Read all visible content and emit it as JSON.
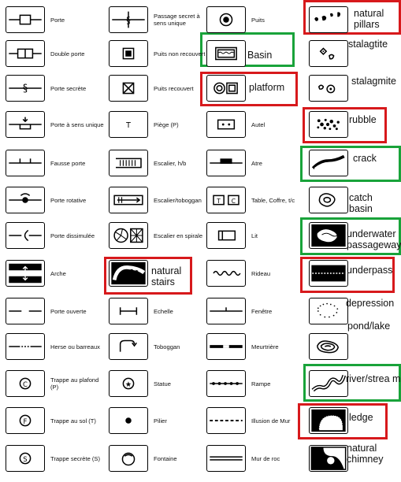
{
  "col1": [
    "Porte",
    "Double porte",
    "Porte secrète",
    "Porte à sens unique",
    "Fausse porte",
    "Porte rotative",
    "Porte dissimulée",
    "Arche",
    "Porte ouverte",
    "Herse ou barreaux",
    "Trappe au plafond (P)",
    "Trappe au sol (T)",
    "Trappe secrète (S)"
  ],
  "col1_icons": [
    "door-icon",
    "double-door-icon",
    "secret-door-icon",
    "one-way-door-icon",
    "false-door-icon",
    "revolving-door-icon",
    "concealed-door-icon",
    "arch-icon",
    "open-door-icon",
    "portcullis-icon",
    "ceiling-trapdoor-icon",
    "floor-trapdoor-icon",
    "secret-trapdoor-icon"
  ],
  "col2": [
    "Passage secret à sens unique",
    "Puits non recouvert",
    "Puits recouvert",
    "Piège (P)",
    "Escalier, h/b",
    "Escalier/toboggan",
    "Escalier en spirale",
    "",
    "Echelle",
    "Toboggan",
    "Statue",
    "Pilier",
    "Fontaine"
  ],
  "col2_icons": [
    "one-way-secret-passage-icon",
    "uncovered-pit-icon",
    "covered-pit-icon",
    "trap-icon",
    "stairs-icon",
    "stair-slide-icon",
    "spiral-stairs-icon",
    "natural-stairs-icon",
    "ladder-icon",
    "slide-icon",
    "statue-icon",
    "pillar-icon",
    "fountain-icon"
  ],
  "col3": [
    "Puits",
    "",
    "",
    "Autel",
    "Atre",
    "Table, Coffre, t/c",
    "Lit",
    "Rideau",
    "Fenêtre",
    "Meurtrière",
    "Rampe",
    "Illusion de Mur",
    "Mur de roc"
  ],
  "col3_icons": [
    "well-icon",
    "basin-icon",
    "platform-icon",
    "altar-icon",
    "hearth-icon",
    "table-chest-icon",
    "bed-icon",
    "curtain-icon",
    "window-icon",
    "arrow-slit-icon",
    "ramp-icon",
    "illusion-wall-icon",
    "rock-wall-icon"
  ],
  "col4_icons": [
    "natural-pillars-icon",
    "stalagtite-icon",
    "stalagmite-icon",
    "rubble-icon",
    "crack-icon",
    "catch-basin-icon",
    "underwater-passageway-icon",
    "underpass-icon",
    "depression-icon",
    "pond-lake-icon",
    "river-stream-icon",
    "ledge-icon",
    "natural-chimney-icon"
  ],
  "table_tiles": {
    "t": "T",
    "c": "C"
  },
  "glyphs": {
    "trap": "T",
    "ceiling": "C",
    "floor": "F",
    "secret": "S"
  },
  "notes": {
    "natural_pillars": "natural pillars",
    "stalagtite": "stalagtite",
    "basin": "Basin",
    "platform": "platform",
    "stalagmite": "stalagmite",
    "rubble": "rubble",
    "crack": "crack",
    "catch_basin": "catch basin",
    "underwater": "underwater passageway",
    "natural_stairs": "natural stairs",
    "underpass": "underpass",
    "depression": "depression",
    "pond_lake": "pond/lake",
    "river": "river/strea m",
    "ledge": "ledge",
    "natural_chimney": "natural chimney"
  },
  "colors": {
    "red": "#d7191c",
    "green": "#19a33a"
  }
}
